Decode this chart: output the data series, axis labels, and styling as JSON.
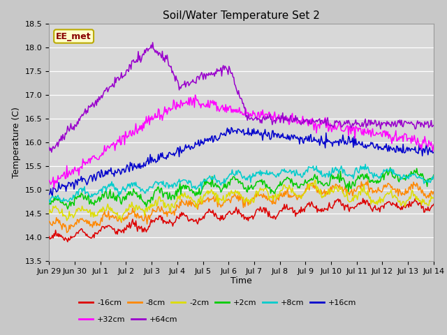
{
  "title": "Soil/Water Temperature Set 2",
  "xlabel": "Time",
  "ylabel": "Temperature (C)",
  "ylim": [
    13.5,
    18.5
  ],
  "fig_bg": "#c8c8c8",
  "plot_bg": "#d8d8d8",
  "grid_color": "#ffffff",
  "annotation_text": "EE_met",
  "annotation_bg": "#ffffcc",
  "annotation_border": "#bbaa00",
  "series_order": [
    "-16cm",
    "-8cm",
    "-2cm",
    "+2cm",
    "+8cm",
    "+16cm",
    "+32cm",
    "+64cm"
  ],
  "series_colors": {
    "-16cm": "#dd0000",
    "-8cm": "#ff8800",
    "-2cm": "#dddd00",
    "+2cm": "#00cc00",
    "+8cm": "#00cccc",
    "+16cm": "#0000cc",
    "+32cm": "#ff00ff",
    "+64cm": "#9900cc"
  },
  "xtick_labels": [
    "Jun 29",
    "Jun 30",
    "Jul 1",
    "Jul 2",
    "Jul 3",
    "Jul 4",
    "Jul 5",
    "Jul 6",
    "Jul 7",
    "Jul 8",
    "Jul 9",
    "Jul 10",
    "Jul 11",
    "Jul 12",
    "Jul 13",
    "Jul 14"
  ],
  "ytick_vals": [
    13.5,
    14.0,
    14.5,
    15.0,
    15.5,
    16.0,
    16.5,
    17.0,
    17.5,
    18.0,
    18.5
  ],
  "n_points": 480,
  "legend_row1": [
    [
      "-16cm",
      "#dd0000"
    ],
    [
      "-8cm",
      "#ff8800"
    ],
    [
      "-2cm",
      "#dddd00"
    ],
    [
      "+2cm",
      "#00cc00"
    ],
    [
      "+8cm",
      "#00cccc"
    ],
    [
      "+16cm",
      "#0000cc"
    ]
  ],
  "legend_row2": [
    [
      "+32cm",
      "#ff00ff"
    ],
    [
      "+64cm",
      "#9900cc"
    ]
  ]
}
